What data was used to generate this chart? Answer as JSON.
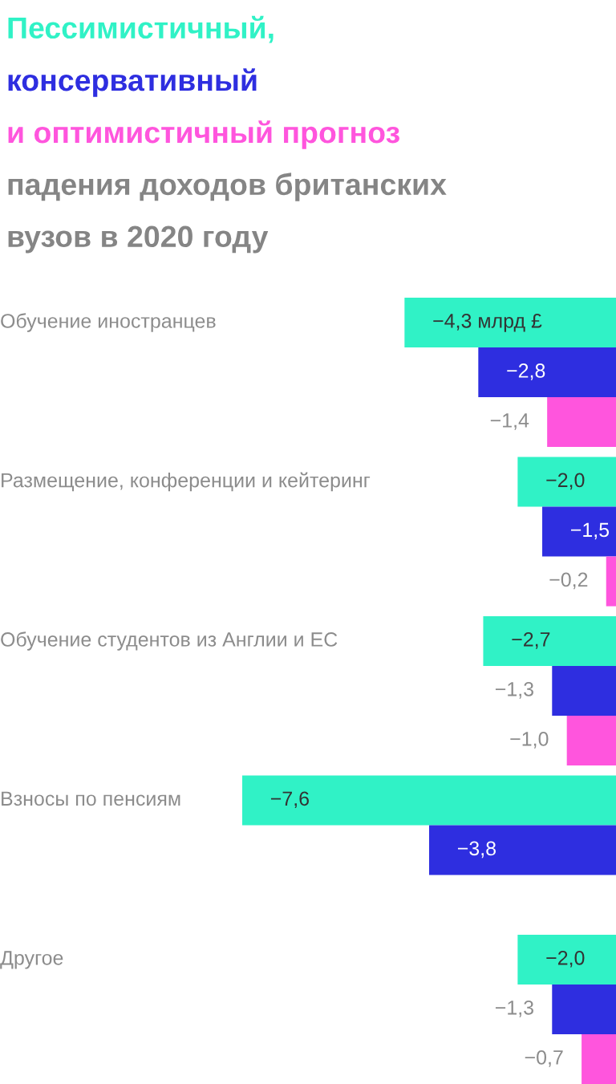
{
  "chart_data": {
    "type": "bar",
    "orientation": "horizontal",
    "title": "падения доходов британских\nвузов в 2020 году",
    "categories": [
      "Обучение иностранцев",
      "Размещение, конференции и кейтеринг",
      "Обучение студентов из Англии и ЕС",
      "Взносы по пенсиям",
      "Другое"
    ],
    "series": [
      {
        "name": "Пессимистичный,",
        "color": "#30f2c6",
        "values": [
          -4.3,
          -2.0,
          -2.7,
          -7.6,
          -2.0
        ],
        "value_labels": [
          "−4,3 млрд £",
          "−2,0",
          "−2,7",
          "−7,6",
          "−2,0"
        ]
      },
      {
        "name": "консервативный",
        "color": "#2e2ee0",
        "values": [
          -2.8,
          -1.5,
          -1.3,
          -3.8,
          -1.3
        ],
        "value_labels": [
          "−2,8",
          "−1,5",
          "−1,3",
          "−3,8",
          "−1,3"
        ]
      },
      {
        "name": "и оптимистичный прогноз",
        "color": "#ff55dd",
        "values": [
          -1.4,
          -0.2,
          -1.0,
          null,
          -0.7
        ],
        "value_labels": [
          "−1,4",
          "−0,2",
          "−1,0",
          null,
          "−0,7"
        ]
      }
    ],
    "legend": false
  }
}
